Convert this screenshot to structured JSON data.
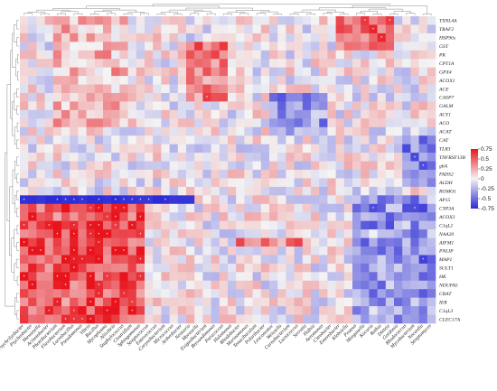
{
  "chart_data": {
    "type": "heatmap",
    "title": "",
    "rows": [
      "TXNL4A",
      "TRAF2",
      "HSP90s",
      "GST",
      "PK",
      "CPT1A",
      "GPX4",
      "ACOX1",
      "ACE",
      "CASP7",
      "GALM",
      "ACY1",
      "ACO",
      "ACAT",
      "CAT",
      "TLR3",
      "TNFRSF13B",
      "gbA",
      "FADS2",
      "ALDH",
      "ROMO1",
      "AP15",
      "CYP3A",
      "ACOX3",
      "C1qL2",
      "NAA20",
      "AIFM1",
      "PNLIP",
      "MAP1",
      "SULT1",
      "HK",
      "NDUFA5",
      "CRAT",
      "IER",
      "C1qL3",
      "CLEC17A"
    ],
    "columns": [
      "Psychrilyobacter",
      "Psychrobacter",
      "Shewanella",
      "Acinetobacter",
      "Photobacterium",
      "Flavobacterium",
      "Lactobacillus",
      "Pseudomonas",
      "Vibrio",
      "Bacillus",
      "Mycoplasma",
      "Aliivibrio",
      "Staphylococcus",
      "Clostridium",
      "Sphingomonas",
      "Streptococcus",
      "Enterococcus",
      "Corynebacterium",
      "Micrococcus",
      "Arthrobacter",
      "Neisseria",
      "Moraxella",
      "Exiguobacterium",
      "Brevundimonas",
      "Paracoccus",
      "Halomonas",
      "Rhodobacter",
      "Marinomonas",
      "Tenacibaculum",
      "Polaribacter",
      "Leuconostoc",
      "Weissella",
      "Carnobacterium",
      "Lactococcus",
      "Serratia",
      "Hafnia",
      "Aeromonas",
      "Citrobacter",
      "Enterobacter",
      "Klebsiella",
      "Proteus",
      "Morganella",
      "Kocuria",
      "Rothia",
      "Dietzia",
      "Gordonia",
      "Rhodococcus",
      "Mycobacterium",
      "Nocardia",
      "Streptomyces"
    ],
    "colorscale": {
      "min": -0.75,
      "max": 0.75,
      "low": "#2b2bd6",
      "mid": "#f4f4f4",
      "high": "#e8141c"
    },
    "legend_ticks": [
      "0.75",
      "0.5",
      "0.25",
      "0",
      "-0.25",
      "-0.5",
      "-0.75"
    ],
    "legend_placement": "right",
    "row_dendrogram": "left",
    "column_dendrogram": "top",
    "significance_marks": "*"
  }
}
